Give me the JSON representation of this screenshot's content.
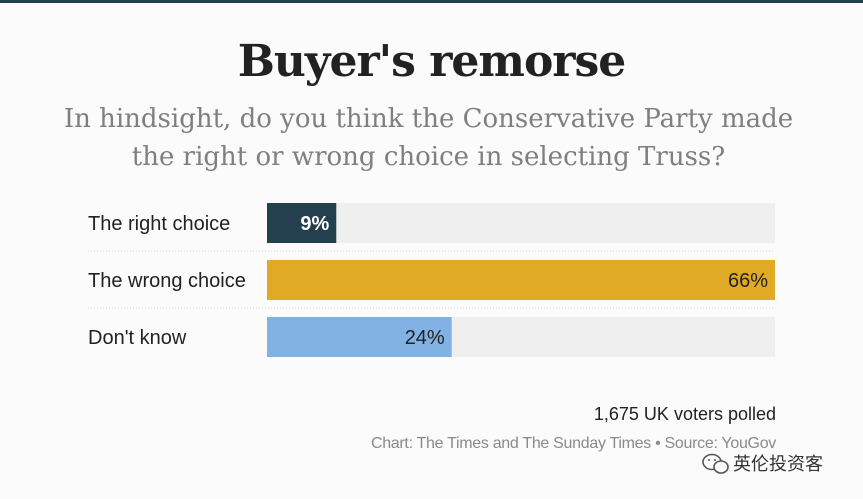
{
  "chart_data": {
    "type": "bar",
    "orientation": "horizontal",
    "title": "Buyer's remorse",
    "subtitle": "In hindsight, do you think the Conservative Party made the right or wrong choice in selecting Truss?",
    "categories": [
      "The right choice",
      "The wrong choice",
      "Don't know"
    ],
    "values": [
      9,
      66,
      24
    ],
    "value_labels": [
      "9%",
      "66%",
      "24%"
    ],
    "colors": [
      "#243f4d",
      "#e1aa26",
      "#82b2e3"
    ],
    "track_color": "#efefef",
    "xlim": [
      0,
      66
    ],
    "sample_note": "1,675 UK voters polled",
    "source": "Chart: The Times and The Sunday Times • Source: YouGov"
  },
  "watermark": {
    "text": "英伦投资客",
    "icon": "wechat-icon"
  }
}
